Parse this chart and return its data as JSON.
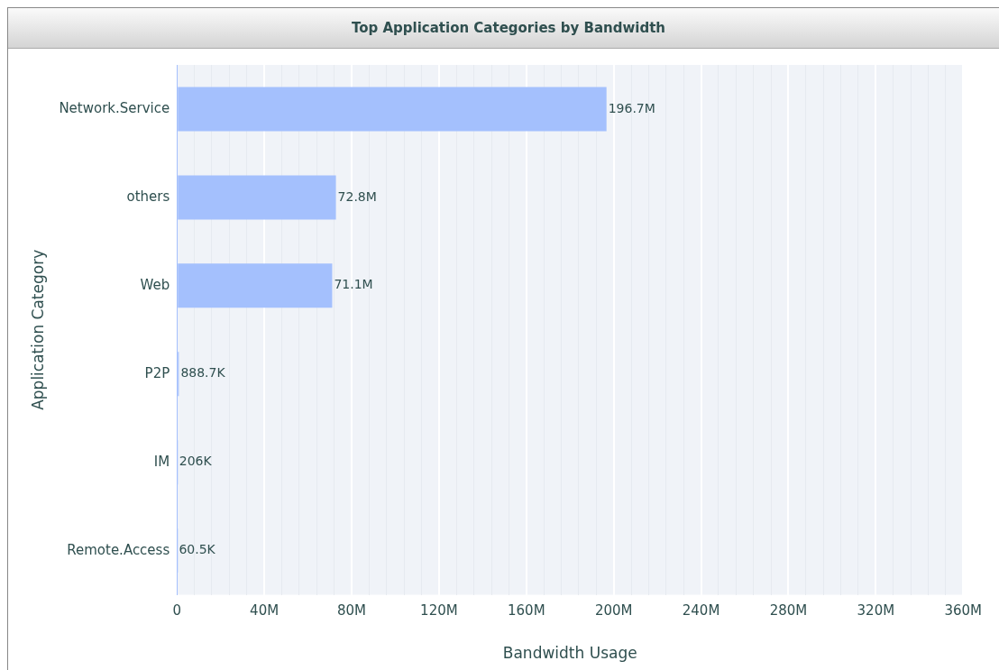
{
  "chart_data": {
    "type": "bar",
    "orientation": "horizontal",
    "title": "Top Application Categories by Bandwidth",
    "xlabel": "Bandwidth Usage",
    "ylabel": "Application Category",
    "categories": [
      "Network.Service",
      "others",
      "Web",
      "P2P",
      "IM",
      "Remote.Access"
    ],
    "values": [
      196700000,
      72800000,
      71100000,
      888700,
      206000,
      60500
    ],
    "value_labels": [
      "196.7M",
      "72.8M",
      "71.1M",
      "888.7K",
      "206K",
      "60.5K"
    ],
    "color": "#a4c0fd",
    "xlim": [
      0,
      360000000
    ],
    "xticks": [
      {
        "value": 0,
        "label": "0"
      },
      {
        "value": 8000000,
        "label": null
      },
      {
        "value": 16000000,
        "label": null
      },
      {
        "value": 24000000,
        "label": null
      },
      {
        "value": 32000000,
        "label": null
      },
      {
        "value": 40000000,
        "label": "40M"
      },
      {
        "value": 48000000,
        "label": null
      },
      {
        "value": 56000000,
        "label": null
      },
      {
        "value": 64000000,
        "label": null
      },
      {
        "value": 72000000,
        "label": null
      },
      {
        "value": 80000000,
        "label": "80M"
      },
      {
        "value": 88000000,
        "label": null
      },
      {
        "value": 96000000,
        "label": null
      },
      {
        "value": 104000000,
        "label": null
      },
      {
        "value": 112000000,
        "label": null
      },
      {
        "value": 120000000,
        "label": "120M"
      },
      {
        "value": 128000000,
        "label": null
      },
      {
        "value": 136000000,
        "label": null
      },
      {
        "value": 144000000,
        "label": null
      },
      {
        "value": 152000000,
        "label": null
      },
      {
        "value": 160000000,
        "label": "160M"
      },
      {
        "value": 168000000,
        "label": null
      },
      {
        "value": 176000000,
        "label": null
      },
      {
        "value": 184000000,
        "label": null
      },
      {
        "value": 192000000,
        "label": null
      },
      {
        "value": 200000000,
        "label": "200M"
      },
      {
        "value": 208000000,
        "label": null
      },
      {
        "value": 216000000,
        "label": null
      },
      {
        "value": 224000000,
        "label": null
      },
      {
        "value": 232000000,
        "label": null
      },
      {
        "value": 240000000,
        "label": "240M"
      },
      {
        "value": 248000000,
        "label": null
      },
      {
        "value": 256000000,
        "label": null
      },
      {
        "value": 264000000,
        "label": null
      },
      {
        "value": 272000000,
        "label": null
      },
      {
        "value": 280000000,
        "label": "280M"
      },
      {
        "value": 288000000,
        "label": null
      },
      {
        "value": 296000000,
        "label": null
      },
      {
        "value": 304000000,
        "label": null
      },
      {
        "value": 312000000,
        "label": null
      },
      {
        "value": 320000000,
        "label": "320M"
      },
      {
        "value": 328000000,
        "label": null
      },
      {
        "value": 336000000,
        "label": null
      },
      {
        "value": 344000000,
        "label": null
      },
      {
        "value": 352000000,
        "label": null
      },
      {
        "value": 360000000,
        "label": "360M"
      }
    ],
    "grid": "x"
  }
}
